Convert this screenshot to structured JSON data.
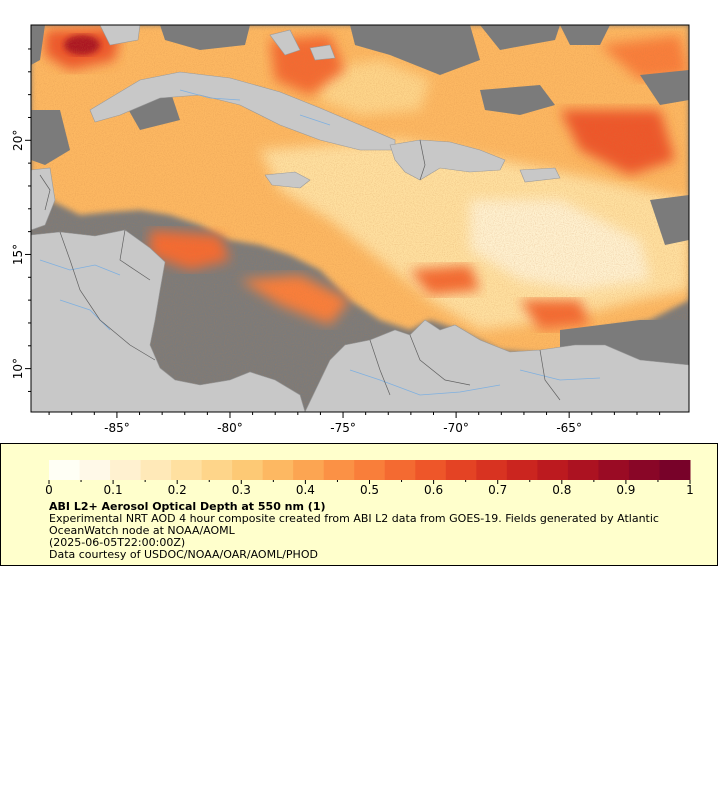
{
  "map": {
    "x_ticks": [
      {
        "lon": -85,
        "label": "-85°"
      },
      {
        "lon": -80,
        "label": "-80°"
      },
      {
        "lon": -75,
        "label": "-75°"
      },
      {
        "lon": -70,
        "label": "-70°"
      },
      {
        "lon": -65,
        "label": "-65°"
      }
    ],
    "y_ticks": [
      {
        "lat": 20,
        "label": "20°"
      },
      {
        "lat": 15,
        "label": "15°"
      },
      {
        "lat": 10,
        "label": "10°"
      }
    ],
    "lon_range": [
      -88.8,
      -59.7
    ],
    "lat_range": [
      8.1,
      25.05
    ],
    "colors": {
      "land": "#c8c8c8",
      "nodata": "#7b7b7b",
      "rivers": "#7fb0e0",
      "borders": "#606060"
    }
  },
  "legend": {
    "colorbar": {
      "min": 0,
      "max": 1,
      "ticks": [
        "0",
        "0.1",
        "0.2",
        "0.3",
        "0.4",
        "0.5",
        "0.6",
        "0.7",
        "0.8",
        "0.9",
        "1"
      ],
      "colors": [
        "#fffff5",
        "#fff9e8",
        "#fff1d0",
        "#ffe9b8",
        "#ffe0a0",
        "#fed58a",
        "#fdc975",
        "#fdb862",
        "#fca552",
        "#fb9145",
        "#f97e3a",
        "#f46a31",
        "#ee5629",
        "#e44324",
        "#d83321",
        "#cb251f",
        "#bc1a1f",
        "#ac1221",
        "#9a0b24",
        "#890627",
        "#780229"
      ]
    },
    "title": "ABI L2+ Aerosol Optical Depth at 550 nm (1)",
    "description": "Experimental NRT AOD 4 hour composite created from ABI L2 data from GOES-19. Fields generated by Atlantic OceanWatch node at NOAA/AOML",
    "timestamp": "(2025-06-05T22:00:00Z)",
    "credit": "Data courtesy of USDOC/NOAA/OAR/AOML/PHOD"
  }
}
